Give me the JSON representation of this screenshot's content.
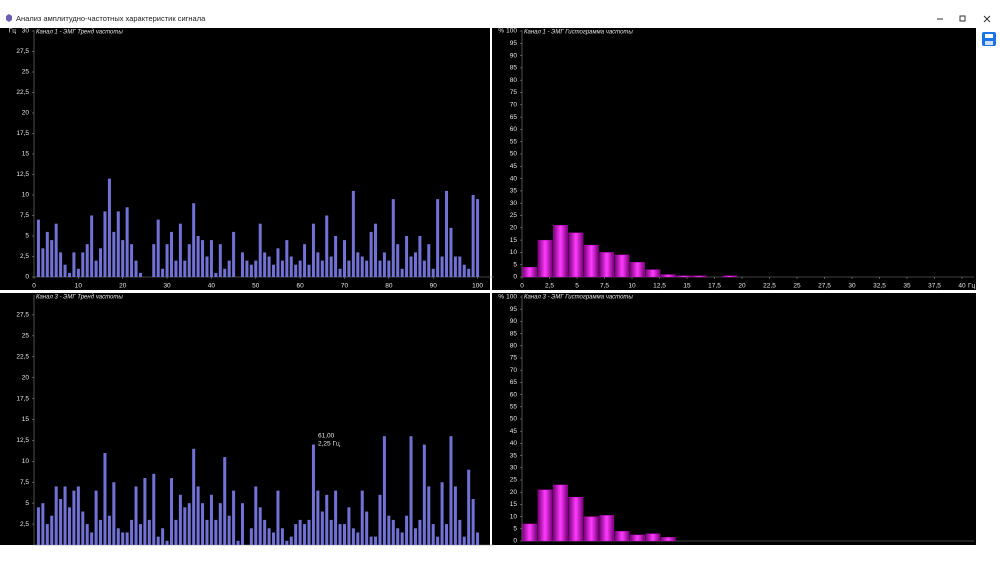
{
  "window": {
    "title": "Анализ амплитудно-частотных характеристик сигнала"
  },
  "chart_data": [
    {
      "type": "bar",
      "title": "Канал 1 - ЭМГ Тренд частоты",
      "ylabel": "Гц",
      "color": "#7272d6",
      "x": [
        1,
        2,
        3,
        4,
        5,
        6,
        7,
        8,
        9,
        10,
        11,
        12,
        13,
        14,
        15,
        16,
        17,
        18,
        19,
        20,
        21,
        22,
        23,
        24,
        25,
        26,
        27,
        28,
        29,
        30,
        31,
        32,
        33,
        34,
        35,
        36,
        37,
        38,
        39,
        40,
        41,
        42,
        43,
        44,
        45,
        46,
        47,
        48,
        49,
        50,
        51,
        52,
        53,
        54,
        55,
        56,
        57,
        58,
        59,
        60,
        61,
        62,
        63,
        64,
        65,
        66,
        67,
        68,
        69,
        70,
        71,
        72,
        73,
        74,
        75,
        76,
        77,
        78,
        79,
        80,
        81,
        82,
        83,
        84,
        85,
        86,
        87,
        88,
        89,
        90,
        91,
        92,
        93,
        94,
        95,
        96,
        97,
        98,
        99,
        100
      ],
      "values": [
        7,
        3.5,
        5.5,
        4.5,
        6.5,
        3,
        1.5,
        0.5,
        3,
        1,
        3,
        4,
        7.5,
        2,
        3.5,
        8,
        12,
        5.5,
        8,
        4.5,
        8.5,
        4,
        2,
        0.5,
        0,
        0,
        4,
        7,
        1,
        4,
        5.5,
        2,
        6.5,
        2,
        4,
        9,
        5,
        4.5,
        2.5,
        4.5,
        0.5,
        4,
        1,
        2,
        5.5,
        0,
        3,
        2,
        1.5,
        2,
        6.5,
        3,
        2.5,
        1.5,
        3.5,
        2,
        4.5,
        2.5,
        1.5,
        2,
        4,
        1.5,
        6.5,
        3,
        2,
        7.5,
        2.5,
        5,
        1,
        4.5,
        2,
        10.5,
        3,
        2.5,
        2,
        5.5,
        6.5,
        2,
        3,
        2,
        9.5,
        4,
        1,
        5,
        2.5,
        3,
        5,
        2,
        4,
        1,
        9.5,
        2.5,
        10.5,
        6,
        2.5,
        2.5,
        1.5,
        1,
        10,
        9.5
      ],
      "xlim": [
        0,
        101
      ],
      "xticks": [
        0,
        10,
        20,
        30,
        40,
        50,
        60,
        70,
        80,
        90,
        100
      ],
      "ylim": [
        0,
        30
      ],
      "yticks": [
        0,
        {
          "value": 2.5,
          "label": "2,5"
        },
        5,
        {
          "value": 7.5,
          "label": "7,5"
        },
        10,
        {
          "value": 12.5,
          "label": "12,5"
        },
        15,
        {
          "value": 17.5,
          "label": "17,5"
        },
        20,
        {
          "value": 22.5,
          "label": "22,5"
        },
        25,
        {
          "value": 27.5,
          "label": "27,5"
        },
        30
      ]
    },
    {
      "type": "histogram",
      "title": "Канал 1 - ЭМГ Гистограмма частоты",
      "ylabel": "%",
      "xlabel": "Гц",
      "color": "#c400c4",
      "bins": [
        0,
        1.4,
        2.8,
        4.2,
        5.6,
        7,
        8.4,
        9.8,
        11.2,
        12.6,
        14,
        15.4,
        16.8,
        18.2,
        19.6
      ],
      "values": [
        4,
        15,
        21,
        18,
        13,
        10,
        9,
        6,
        3,
        1,
        0.5,
        0.5,
        0,
        0.5
      ],
      "xlim": [
        0,
        40
      ],
      "xticks": [
        0,
        {
          "value": 2.5,
          "label": "2,5"
        },
        5,
        {
          "value": 7.5,
          "label": "7,5"
        },
        10,
        {
          "value": 12.5,
          "label": "12,5"
        },
        15,
        {
          "value": 17.5,
          "label": "17,5"
        },
        20,
        {
          "value": 22.5,
          "label": "22,5"
        },
        25,
        {
          "value": 27.5,
          "label": "27,5"
        },
        30,
        {
          "value": 32.5,
          "label": "32,5"
        },
        35,
        {
          "value": 37.5,
          "label": "37,5"
        },
        40
      ],
      "ylim": [
        0,
        100
      ],
      "yticks": [
        0,
        5,
        10,
        15,
        20,
        25,
        30,
        35,
        40,
        45,
        50,
        55,
        60,
        65,
        70,
        75,
        80,
        85,
        90,
        95,
        100
      ]
    },
    {
      "type": "bar",
      "title": "Канал 3 - ЭМГ Тренд частоты",
      "color": "#7272d6",
      "annotation": [
        "61,00",
        "2,25 Гц"
      ],
      "x": [
        1,
        2,
        3,
        4,
        5,
        6,
        7,
        8,
        9,
        10,
        11,
        12,
        13,
        14,
        15,
        16,
        17,
        18,
        19,
        20,
        21,
        22,
        23,
        24,
        25,
        26,
        27,
        28,
        29,
        30,
        31,
        32,
        33,
        34,
        35,
        36,
        37,
        38,
        39,
        40,
        41,
        42,
        43,
        44,
        45,
        46,
        47,
        48,
        49,
        50,
        51,
        52,
        53,
        54,
        55,
        56,
        57,
        58,
        59,
        60,
        61,
        62,
        63,
        64,
        65,
        66,
        67,
        68,
        69,
        70,
        71,
        72,
        73,
        74,
        75,
        76,
        77,
        78,
        79,
        80,
        81,
        82,
        83,
        84,
        85,
        86,
        87,
        88,
        89,
        90,
        91,
        92,
        93,
        94,
        95,
        96,
        97,
        98,
        99,
        100
      ],
      "values": [
        4.5,
        5,
        2.5,
        3.5,
        7,
        5.5,
        7,
        4.5,
        6.5,
        7,
        4,
        2.5,
        1.5,
        6.5,
        3,
        11,
        3.5,
        7.5,
        2,
        1.5,
        1.5,
        3,
        7,
        2.5,
        8,
        3,
        8.5,
        1,
        2,
        0.5,
        8,
        3,
        6,
        4.5,
        5,
        11.5,
        7,
        5,
        3,
        6,
        3,
        5,
        10.5,
        3.5,
        6.5,
        0.5,
        5,
        0,
        2,
        7,
        4.5,
        3,
        2,
        1.5,
        6.5,
        2,
        0.5,
        1,
        2.5,
        3,
        2.5,
        3,
        12,
        6.5,
        4,
        6,
        3,
        6.5,
        2.5,
        2.5,
        4.5,
        2,
        1.5,
        6.5,
        4,
        1,
        1,
        6,
        13,
        3.5,
        3,
        2,
        1.5,
        3.5,
        13,
        2,
        3,
        12,
        7,
        2.5,
        1,
        7.5,
        2.5,
        13,
        7,
        3,
        1,
        9,
        5.5,
        1.5
      ],
      "xlim": [
        0,
        101
      ],
      "ylim": [
        0,
        30
      ],
      "yticks": [
        {
          "value": 2.5,
          "label": "2,5"
        },
        5,
        {
          "value": 7.5,
          "label": "7,5"
        },
        10,
        {
          "value": 12.5,
          "label": "12,5"
        },
        15,
        {
          "value": 17.5,
          "label": "17,5"
        },
        20,
        {
          "value": 22.5,
          "label": "22,5"
        },
        25,
        {
          "value": 27.5,
          "label": "27,5"
        }
      ]
    },
    {
      "type": "histogram",
      "title": "Канал 3 - ЭМГ Гистограмма частоты",
      "ylabel": "%",
      "color": "#c400c4",
      "bins": [
        0,
        1.4,
        2.8,
        4.2,
        5.6,
        7,
        8.4,
        9.8,
        11.2,
        12.6,
        14
      ],
      "values": [
        7,
        21,
        23,
        18,
        10,
        10.5,
        4,
        2.5,
        3,
        1.5
      ],
      "xlim": [
        0,
        40
      ],
      "ylim": [
        0,
        100
      ],
      "yticks": [
        0,
        5,
        10,
        15,
        20,
        25,
        30,
        35,
        40,
        45,
        50,
        55,
        60,
        65,
        70,
        75,
        80,
        85,
        90,
        95,
        100
      ]
    }
  ]
}
